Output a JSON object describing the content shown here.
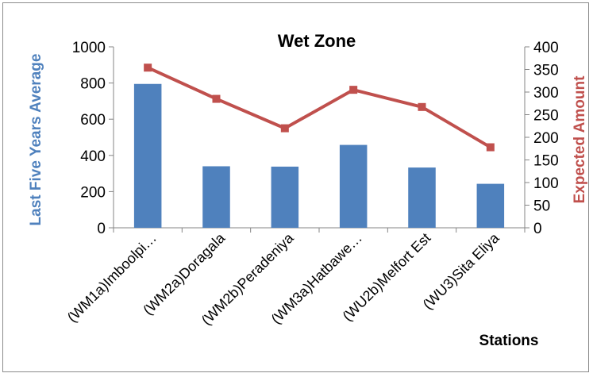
{
  "chart_data": {
    "type": "bar",
    "title": "Wet Zone",
    "xlabel": "Stations",
    "ylabel": "Last Five Years Average",
    "y2label": "Expected Amount",
    "categories": [
      "(WM1a)Imboolpi…",
      "(WM2a)Doragala",
      "(WM2b)Peradeniya",
      "(WM3a)Hatbawe…",
      "(WU2b)Melfort Est",
      "(WU3)Sita Eliya"
    ],
    "series": [
      {
        "type": "bar",
        "axis": "left",
        "values": [
          795,
          340,
          338,
          458,
          333,
          243
        ],
        "color": "#4f81bd"
      },
      {
        "type": "line",
        "axis": "right",
        "values": [
          354,
          285,
          220,
          305,
          267,
          178
        ],
        "color": "#c0504d"
      }
    ],
    "ylim": [
      0,
      1000
    ],
    "yticks": [
      "0",
      "200",
      "400",
      "600",
      "800",
      "1000"
    ],
    "y2lim": [
      0,
      400
    ],
    "y2ticks": [
      "0",
      "50",
      "100",
      "150",
      "200",
      "250",
      "300",
      "350",
      "400"
    ],
    "grid": false,
    "legend": "none"
  },
  "colors": {
    "bar": "#4f81bd",
    "line": "#c0504d",
    "left_axis_title": "#4f81bd",
    "right_axis_title": "#c0504d"
  }
}
